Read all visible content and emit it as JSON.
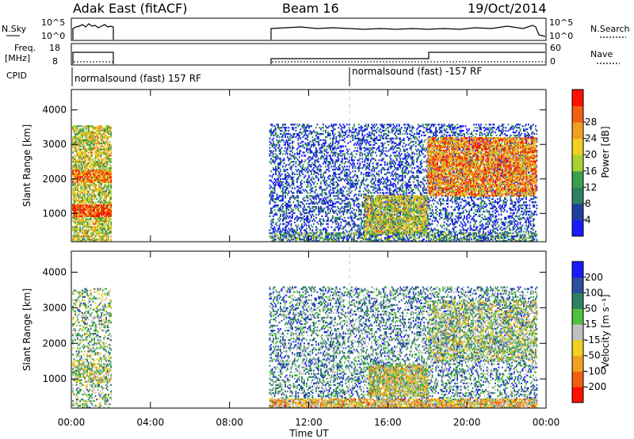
{
  "header": {
    "station": "Adak East (fitACF)",
    "beam": "Beam 16",
    "date": "19/Oct/2014"
  },
  "strip_labels": {
    "nsky": "N.Sky",
    "freq_top": "Freq.",
    "freq_unit": "[MHz]",
    "cpid": "CPID",
    "nsearch": "N.Search",
    "nave": "Nave",
    "nsky_ticks": [
      "10^5",
      "10^0"
    ],
    "nsearch_ticks": [
      "10^5",
      "10^0"
    ],
    "freq_ticks": [
      "18",
      "8"
    ],
    "nave_ticks": [
      "60",
      "0"
    ]
  },
  "cpid_segments": [
    {
      "label": "normalsound (fast) 157 RF",
      "start_hour": 0
    },
    {
      "label": "normalsound (fast) -157 RF",
      "start_hour": 14
    }
  ],
  "chart_data": [
    {
      "type": "heatmap",
      "name": "power",
      "ylabel": "Slant Range [km]",
      "ytick_labels": [
        "1000",
        "2000",
        "3000",
        "4000"
      ],
      "ylim": [
        180,
        4590
      ],
      "xlim": [
        0,
        24
      ],
      "colorbar_label": "Power [dB]",
      "colorbar_ticks": [
        "4",
        "8",
        "12",
        "16",
        "20",
        "24",
        "28"
      ],
      "colors": [
        "#1a1aff",
        "#1f3fa0",
        "#2f8060",
        "#3aa050",
        "#a8d030",
        "#f0d020",
        "#f0a020",
        "#f06010",
        "#ff1000"
      ],
      "regions": [
        {
          "t0": 0.05,
          "t1": 2.0,
          "r0": 180,
          "r1": 3550,
          "level": 0.55
        },
        {
          "t0": 0.05,
          "t1": 2.0,
          "r0": 900,
          "r1": 1250,
          "level": 0.95
        },
        {
          "t0": 0.05,
          "t1": 2.0,
          "r0": 1900,
          "r1": 2250,
          "level": 0.8
        },
        {
          "t0": 10.0,
          "t1": 23.5,
          "r0": 180,
          "r1": 3600,
          "level": 0.15
        },
        {
          "t0": 14.8,
          "t1": 18.0,
          "r0": 400,
          "r1": 1500,
          "level": 0.55
        },
        {
          "t0": 18.0,
          "t1": 23.5,
          "r0": 1500,
          "r1": 3200,
          "level": 0.75
        },
        {
          "t0": 10.0,
          "t1": 23.5,
          "r0": 180,
          "r1": 450,
          "level": 0.35
        }
      ]
    },
    {
      "type": "heatmap",
      "name": "velocity",
      "ylabel": "Slant Range [km]",
      "ytick_labels": [
        "1000",
        "2000",
        "3000",
        "4000"
      ],
      "ylim": [
        180,
        4590
      ],
      "xlim": [
        0,
        24
      ],
      "xlabel": "Time UT",
      "xtick_labels": [
        "00:00",
        "04:00",
        "08:00",
        "12:00",
        "16:00",
        "20:00",
        "00:00"
      ],
      "colorbar_label": "Velocity [m s⁻¹]",
      "colorbar_ticks": [
        "200",
        "100",
        "50",
        "15",
        "-15",
        "-50",
        "-100",
        "-200"
      ],
      "colors": [
        "#1a1aff",
        "#2f50a0",
        "#2f8060",
        "#50c040",
        "#c0c0c0",
        "#f0d020",
        "#f0a020",
        "#f06010",
        "#ff1000"
      ],
      "regions": [
        {
          "t0": 0.05,
          "t1": 2.0,
          "r0": 180,
          "r1": 3550,
          "level": 0.4
        },
        {
          "t0": 0.05,
          "t1": 2.0,
          "r0": 900,
          "r1": 1400,
          "level": 0.5
        },
        {
          "t0": 10.0,
          "t1": 23.5,
          "r0": 180,
          "r1": 3600,
          "level": 0.3
        },
        {
          "t0": 15.0,
          "t1": 18.0,
          "r0": 500,
          "r1": 1400,
          "level": 0.55
        },
        {
          "t0": 18.0,
          "t1": 23.5,
          "r0": 1500,
          "r1": 3200,
          "level": 0.5
        },
        {
          "t0": 10.0,
          "t1": 23.5,
          "r0": 180,
          "r1": 450,
          "level": 0.65
        }
      ]
    }
  ]
}
